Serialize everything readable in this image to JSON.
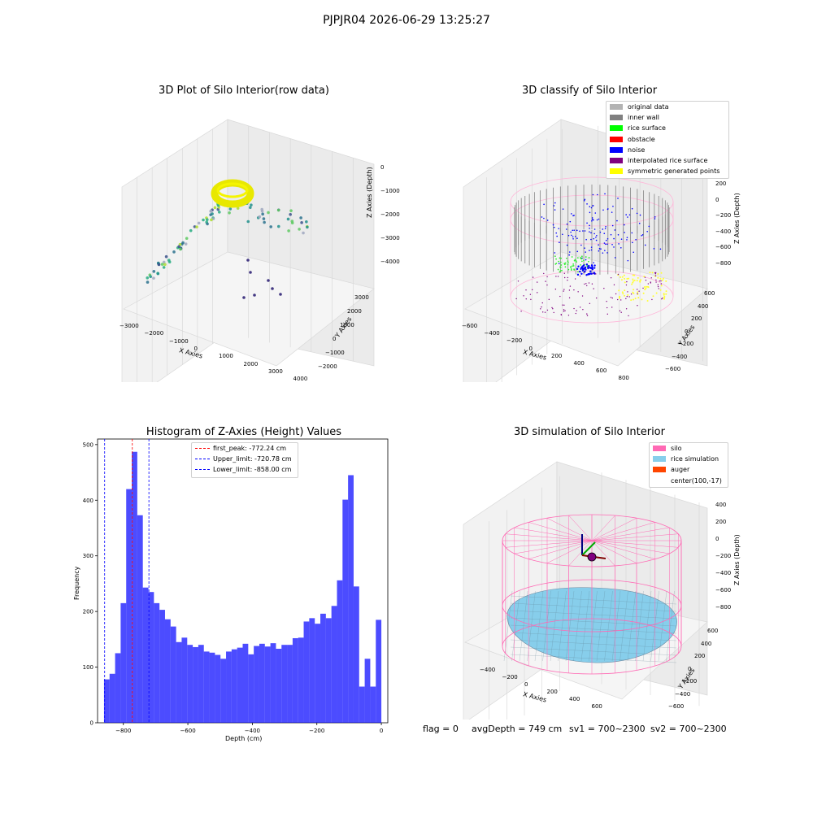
{
  "suptitle": "PJPJR04 2026-06-29 13:25:27",
  "plots": {
    "raw": {
      "title": "3D Plot of Silo Interior(row data)",
      "xlabel": "X Axies",
      "ylabel": "Y Axies",
      "zlabel": "Z Axies (Depth)",
      "xticks": [
        "-3000",
        "-2000",
        "-1000",
        "0",
        "1000",
        "2000",
        "3000",
        "4000"
      ],
      "yticks": [
        "3000",
        "2000",
        "1000",
        "0",
        "-1000",
        "-2000"
      ],
      "zticks": [
        "0",
        "-1000",
        "-2000",
        "-3000",
        "-4000"
      ]
    },
    "classify": {
      "title": "3D classify of Silo Interior",
      "xlabel": "X Axies",
      "ylabel": "Y Axies",
      "zlabel": "Z Axies (Depth)",
      "xticks": [
        "-600",
        "-400",
        "-200",
        "0",
        "200",
        "400",
        "600",
        "800"
      ],
      "yticks": [
        "600",
        "400",
        "200",
        "0",
        "-200",
        "-400",
        "-600"
      ],
      "zticks": [
        "200",
        "0",
        "-200",
        "-400",
        "-600",
        "-800"
      ],
      "legend": [
        {
          "label": "original data",
          "color": "#b3b3b3"
        },
        {
          "label": "inner wall",
          "color": "#808080"
        },
        {
          "label": "rice surface",
          "color": "#00ff00"
        },
        {
          "label": "obstacle",
          "color": "#ff0000"
        },
        {
          "label": "noise",
          "color": "#0000ff"
        },
        {
          "label": "interpolated rice surface",
          "color": "#800080"
        },
        {
          "label": "symmetric generated points",
          "color": "#ffff00"
        }
      ]
    },
    "simulation": {
      "title": "3D simulation of Silo Interior",
      "xlabel": "X Axies",
      "ylabel": "Y Axies",
      "zlabel": "Z Axies (Depth)",
      "xticks": [
        "-400",
        "-200",
        "0",
        "200",
        "400",
        "600"
      ],
      "yticks": [
        "600",
        "400",
        "200",
        "0",
        "-200",
        "-400",
        "-600"
      ],
      "zticks": [
        "400",
        "200",
        "0",
        "-200",
        "-400",
        "-600",
        "-800"
      ],
      "legend": [
        {
          "label": "silo",
          "color": "#ff69b4"
        },
        {
          "label": "rice simulation",
          "color": "#87ceeb"
        },
        {
          "label": "auger",
          "color": "#ff4500"
        },
        {
          "label": "center(100,-17)",
          "color": ""
        }
      ]
    }
  },
  "footer": {
    "flag": "flag = 0",
    "avg": "avgDepth = 749 cm",
    "sv1": "sv1 = 700~2300",
    "sv2": "sv2 = 700~2300"
  },
  "chart_data": {
    "type": "bar",
    "title": "Histogram of Z-Axies (Height) Values",
    "xlabel": "Depth (cm)",
    "ylabel": "Frequency",
    "xlim": [
      -880,
      20
    ],
    "ylim": [
      0,
      510
    ],
    "bar_color": "#0000ff",
    "bin_start": -860,
    "bin_width": 17.2,
    "values": [
      78,
      88,
      125,
      215,
      420,
      487,
      373,
      243,
      235,
      215,
      203,
      186,
      173,
      145,
      153,
      140,
      136,
      140,
      128,
      126,
      122,
      115,
      128,
      132,
      135,
      142,
      123,
      138,
      142,
      137,
      143,
      133,
      140,
      140,
      152,
      153,
      182,
      188,
      178,
      196,
      188,
      210,
      256,
      401,
      445,
      245,
      65,
      115,
      65,
      185
    ],
    "xticks": [
      -800,
      -600,
      -400,
      -200,
      0
    ],
    "yticks": [
      0,
      100,
      200,
      300,
      400,
      500
    ],
    "vlines": [
      {
        "label": "first_peak: -772.24 cm",
        "x": -772.24,
        "color": "#ff0000"
      },
      {
        "label": "Upper_limit: -720.78 cm",
        "x": -720.78,
        "color": "#0000ff"
      },
      {
        "label": "Lower_limit: -858.00 cm",
        "x": -858.0,
        "color": "#0000ff"
      }
    ]
  }
}
